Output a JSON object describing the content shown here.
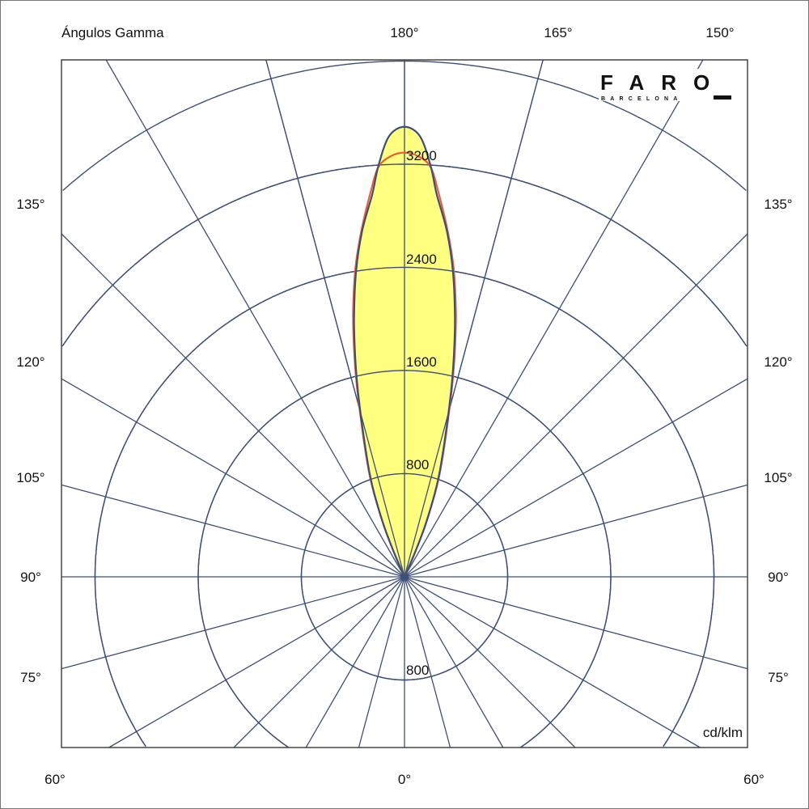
{
  "chart_data": {
    "type": "polar",
    "title": "Ángulos Gamma",
    "unit_label": "cd/klm",
    "radial_tick_labels": [
      "800",
      "1600",
      "2400",
      "3200"
    ],
    "radial_tick_label_lower": "800",
    "radial_gridlines": [
      800,
      1600,
      2400,
      3200,
      4000,
      4800
    ],
    "angle_grid_step_deg": 15,
    "angle_labels": {
      "top": [
        "180°",
        "165°",
        "150°"
      ],
      "left": [
        "135°",
        "120°",
        "105°",
        "90°",
        "75°"
      ],
      "right": [
        "135°",
        "120°",
        "105°",
        "90°",
        "75°"
      ],
      "bottom": [
        "60°",
        "0°",
        "60°"
      ]
    },
    "grid": true,
    "series": [
      {
        "plane": "C0-C180",
        "color": "#3d4f78",
        "fill": "#ffff80",
        "angles_from_180": [
          0,
          2,
          3.6,
          4.8,
          7,
          9,
          11,
          12.6,
          14,
          15.4,
          17,
          18.7,
          20,
          22,
          23.5,
          24.5
        ],
        "values": [
          3490,
          3420,
          3200,
          2980,
          2700,
          2400,
          2050,
          1755,
          1500,
          1255,
          1030,
          840,
          680,
          420,
          180,
          0
        ]
      },
      {
        "plane": "C90-C270",
        "color": "#e8603a",
        "angles_from_180": [
          0,
          2,
          3.7,
          5,
          7,
          9,
          11,
          12.6,
          14,
          15.4,
          17,
          18.7,
          20,
          22,
          23.5,
          24.5
        ],
        "values": [
          3290,
          3260,
          3180,
          3000,
          2720,
          2430,
          2090,
          1790,
          1530,
          1280,
          1055,
          860,
          700,
          435,
          190,
          0
        ]
      }
    ]
  },
  "logo": {
    "name": "FARO",
    "sub": "BARCELONA"
  }
}
